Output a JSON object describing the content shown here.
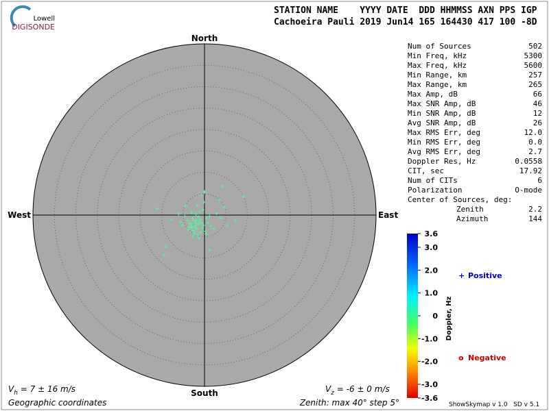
{
  "logo": {
    "line1": "Lowell",
    "line2": "DIGISONDE"
  },
  "header": {
    "line1": "STATION NAME    YYYY DATE  DDD HHMMSS AXN PPS IGP",
    "line2": "Cachoeira Pauli 2019 Jun14 165 164430 417 100 -8D"
  },
  "stats": [
    [
      "Num of Sources",
      "502"
    ],
    [
      "Min Freq, kHz",
      "5300"
    ],
    [
      "Max Freq, kHz",
      "5600"
    ],
    [
      "Min Range, km",
      "257"
    ],
    [
      "Max Range, km",
      "265"
    ],
    [
      "Max Amp, dB",
      "66"
    ],
    [
      "Max SNR Amp, dB",
      "46"
    ],
    [
      "Min SNR Amp, dB",
      "12"
    ],
    [
      "Avg SNR Amp, dB",
      "26"
    ],
    [
      "Max RMS Err, deg",
      "12.0"
    ],
    [
      "Min RMS Err, deg",
      "0.0"
    ],
    [
      "Avg RMS Err, deg",
      "2.7"
    ],
    [
      "Doppler Res, Hz",
      "0.0558"
    ],
    [
      "CIT, sec",
      "17.92"
    ],
    [
      "Num of CITs",
      "6"
    ],
    [
      "Polarization",
      "O-mode"
    ]
  ],
  "center": {
    "title": "Center of Sources, deg:",
    "rows": [
      [
        "Zenith",
        "2.2"
      ],
      [
        "Azimuth",
        "144"
      ]
    ]
  },
  "footer": {
    "vh": {
      "symbol": "V",
      "subscript": "h",
      "text": " = 7 ± 16 m/s"
    },
    "vz": {
      "symbol": "V",
      "subscript": "z",
      "text": " = -6 ± 0 m/s"
    },
    "coords": "Geographic coordinates",
    "version": "ShowSkymap v 1.0   SD v 5.1"
  },
  "chart_data": {
    "type": "skymap",
    "directions": {
      "north": "North",
      "south": "South",
      "east": "East",
      "west": "West"
    },
    "zenith": {
      "prefix": "Zenith: max ",
      "max": 40,
      "middle": "°  step ",
      "step": 5,
      "suffix": "°"
    },
    "marker_color": "#55f7a0",
    "series": [
      {
        "name": "Positive",
        "color": "#0000cc",
        "marker": "+",
        "x": [
          -11,
          -9.4,
          -8.9,
          9.1,
          4.3,
          7.2,
          1.1,
          -0.8,
          0,
          3.5,
          -4.5,
          -7.8,
          -6,
          3.8,
          4.6,
          5.3,
          -2,
          -1.5,
          -2.5,
          -3,
          -1,
          -0.5,
          -2.8,
          -3.5,
          -1.8,
          -2.2,
          -1.2,
          -0.2,
          0.5,
          -4,
          -3.8,
          -2.6,
          -1.4,
          -0.9,
          -2,
          -3.2,
          -1.6,
          0.8,
          1.5,
          -0.4,
          -4.6,
          -5.2,
          -2.4,
          -1.1,
          0.2,
          -3,
          -2.7,
          -1.9,
          -0.6,
          1.2,
          -3.6,
          -2.1,
          -1.3,
          2.2,
          2.8,
          -5.6,
          -1.7,
          0.4,
          -2.9,
          -0.1
        ],
        "y": [
          1.5,
          -9.4,
          -7.4,
          4.3,
          6.7,
          -1.3,
          -8.2,
          4.6,
          5.4,
          3.5,
          2.1,
          -1.1,
          0.3,
          -0.6,
          1.8,
          -2.5,
          -1.8,
          -2.2,
          -1.4,
          -2.6,
          -1,
          -3,
          -0.8,
          -1.9,
          -3.2,
          -2.8,
          -1.6,
          -2.4,
          -0.6,
          -1.2,
          -3.4,
          -3.6,
          -0.4,
          -4,
          0.2,
          -2,
          -4.6,
          -1.8,
          -2.6,
          1.2,
          -0.2,
          -2.4,
          -4.2,
          0.8,
          -3.8,
          0.6,
          -5,
          -1.2,
          -1.9,
          -0.2,
          -2.8,
          -2.4,
          -5.4,
          -3.2,
          0.4,
          -1.6,
          2.2,
          -4.4,
          -3,
          3
        ]
      },
      {
        "name": "Negative",
        "color": "#cc0000",
        "marker": "o",
        "x": [],
        "y": []
      }
    ],
    "colorbar": {
      "label": "Doppler, Hz",
      "lim": [
        -3.6,
        3.6
      ],
      "ticks": [
        3.6,
        {
          "value": 3,
          "label": "3.0"
        },
        {
          "value": 2,
          "label": "2.0"
        },
        {
          "value": 1,
          "label": "1.0"
        },
        0,
        {
          "value": -1,
          "label": "-1.0"
        },
        {
          "value": -2,
          "label": "-2.0"
        },
        {
          "value": -3,
          "label": "-3.0"
        },
        -3.6
      ]
    }
  }
}
